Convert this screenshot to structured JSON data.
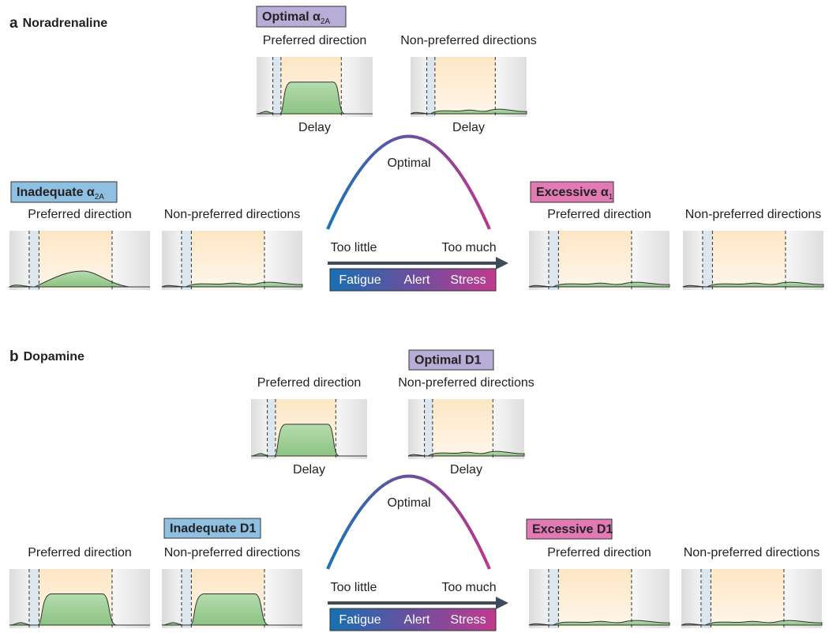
{
  "panels": [
    {
      "letter": "a",
      "title": "Noradrenaline",
      "optimal": {
        "label": "Optimal α",
        "sub": "2A",
        "plots": [
          {
            "title": "Preferred direction",
            "xlabel": "Delay"
          },
          {
            "title": "Non-preferred directions",
            "xlabel": "Delay"
          }
        ]
      },
      "inadequate": {
        "label": "Inadequate α",
        "sub": "2A",
        "plots": [
          {
            "title": "Preferred direction"
          },
          {
            "title": "Non-preferred directions"
          }
        ]
      },
      "excessive": {
        "label": "Excessive α",
        "sub": "1",
        "plots": [
          {
            "title": "Preferred direction"
          },
          {
            "title": "Non-preferred directions"
          }
        ]
      },
      "curve": {
        "peak": "Optimal",
        "left": "Too little",
        "right": "Too much",
        "scale": [
          "Fatigue",
          "Alert",
          "Stress"
        ]
      }
    },
    {
      "letter": "b",
      "title": "Dopamine",
      "optimal": {
        "label": "Optimal D1",
        "plots": [
          {
            "title": "Preferred direction",
            "xlabel": "Delay"
          },
          {
            "title": "Non-preferred directions",
            "xlabel": "Delay"
          }
        ]
      },
      "inadequate": {
        "label": "Inadequate D1",
        "plots": [
          {
            "title": "Preferred direction"
          },
          {
            "title": "Non-preferred directions"
          }
        ]
      },
      "excessive": {
        "label": "Excessive D1",
        "plots": [
          {
            "title": "Preferred direction"
          },
          {
            "title": "Non-preferred directions"
          }
        ]
      },
      "curve": {
        "peak": "Optimal",
        "left": "Too little",
        "right": "Too much",
        "scale": [
          "Fatigue",
          "Alert",
          "Stress"
        ]
      }
    }
  ]
}
